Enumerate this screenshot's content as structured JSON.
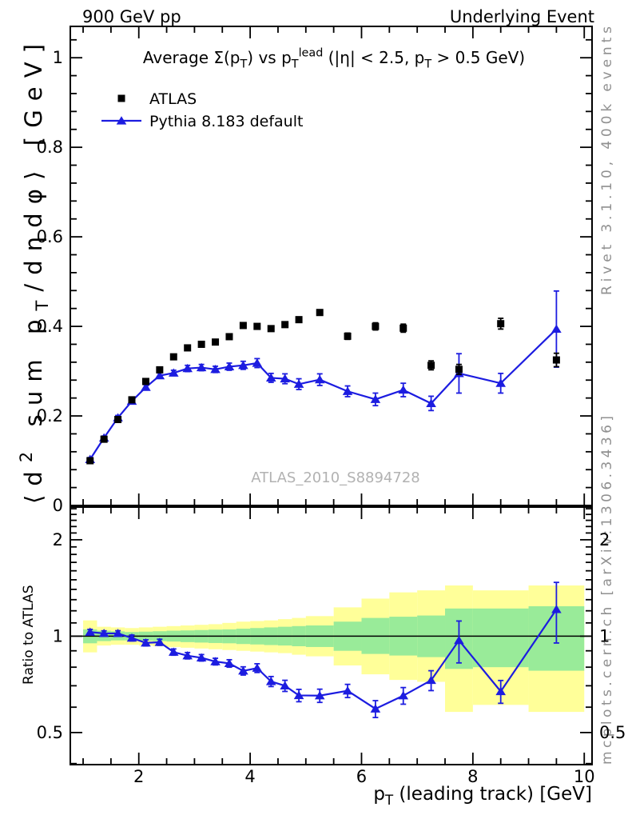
{
  "header": {
    "left": "900 GeV pp",
    "right": "Underlying Event"
  },
  "side_notes": {
    "top_right": "Rivet 3.1.10,  400k events",
    "bottom_right": "mcplots.cern.ch [arXiv:1306.3436]"
  },
  "watermark": {
    "text": "ATLAS_2010_S8894728"
  },
  "colors": {
    "mc_blue": "#1c1ce0",
    "data_black": "#000000",
    "band_yellow": "#ffff99",
    "band_green": "#99eb99",
    "note_gray": "#909090",
    "watermark_gray": "#b2b2b2"
  },
  "chart_data": [
    {
      "type": "scatter",
      "title": "Average Σ(p_{T}) vs p_{T}^{lead} (|η| < 2.5, p_{T} > 0.5 GeV)",
      "ylabel": "⟨d^{2} sum p_{T}/dηdφ⟩ [GeV]",
      "xlim": [
        0.77,
        10.14
      ],
      "ylim": [
        0,
        1.07
      ],
      "yticks": {
        "major_step": 0.2,
        "minor_step": 0.04,
        "labels": [
          "0",
          "0.2",
          "0.4",
          "0.6",
          "0.8",
          "1"
        ],
        "label_values": [
          0,
          0.2,
          0.4,
          0.6,
          0.8,
          1
        ]
      },
      "x": [
        1.125,
        1.375,
        1.625,
        1.875,
        2.125,
        2.375,
        2.625,
        2.875,
        3.125,
        3.375,
        3.625,
        3.875,
        4.125,
        4.375,
        4.625,
        4.875,
        5.25,
        5.75,
        6.25,
        6.75,
        7.25,
        7.75,
        8.5,
        9.5
      ],
      "series": [
        {
          "name": "ATLAS",
          "marker": "square",
          "color": "#000000",
          "line": false,
          "values": [
            0.1,
            0.148,
            0.192,
            0.236,
            0.277,
            0.303,
            0.332,
            0.352,
            0.36,
            0.365,
            0.377,
            0.402,
            0.4,
            0.395,
            0.404,
            0.415,
            0.431,
            0.378,
            0.4,
            0.396,
            0.313,
            0.304,
            0.406,
            0.325
          ],
          "errors": [
            0.003,
            0.003,
            0.003,
            0.003,
            0.004,
            0.004,
            0.004,
            0.004,
            0.004,
            0.005,
            0.005,
            0.005,
            0.005,
            0.005,
            0.006,
            0.006,
            0.006,
            0.007,
            0.008,
            0.009,
            0.01,
            0.011,
            0.012,
            0.015
          ]
        },
        {
          "name": "Pythia 8.183 default",
          "marker": "triangle",
          "color": "#1c1ce0",
          "line": true,
          "values": [
            0.103,
            0.151,
            0.196,
            0.233,
            0.264,
            0.29,
            0.296,
            0.306,
            0.308,
            0.304,
            0.31,
            0.313,
            0.318,
            0.285,
            0.283,
            0.271,
            0.281,
            0.255,
            0.237,
            0.258,
            0.228,
            0.295,
            0.273,
            0.394
          ],
          "errors": [
            0.004,
            0.004,
            0.005,
            0.005,
            0.006,
            0.006,
            0.006,
            0.007,
            0.007,
            0.007,
            0.008,
            0.009,
            0.01,
            0.01,
            0.011,
            0.012,
            0.013,
            0.012,
            0.014,
            0.015,
            0.016,
            0.044,
            0.022,
            0.085
          ]
        }
      ],
      "legend_position": "top-left"
    },
    {
      "type": "ratio",
      "ylabel": "Ratio to ATLAS",
      "xlabel": "p_{T} (leading track) [GeV]",
      "yscale": "log",
      "ylim": [
        0.397,
        2.53
      ],
      "yticks": {
        "major": [
          0.5,
          1,
          2
        ],
        "labels": [
          "0.5",
          "1",
          "2"
        ],
        "minor": [
          0.4,
          0.6,
          0.7,
          0.8,
          0.9,
          1.1,
          1.2,
          1.3,
          1.4,
          1.5,
          1.6,
          1.7,
          1.8,
          1.9,
          2.1,
          2.2,
          2.3,
          2.4,
          2.5
        ]
      },
      "xticks": {
        "major": [
          2,
          4,
          6,
          8,
          10
        ],
        "labels": [
          "2",
          "4",
          "6",
          "8",
          "10"
        ],
        "minor_step": 0.5
      },
      "reference_line": 1,
      "x": [
        1.125,
        1.375,
        1.625,
        1.875,
        2.125,
        2.375,
        2.625,
        2.875,
        3.125,
        3.375,
        3.625,
        3.875,
        4.125,
        4.375,
        4.625,
        4.875,
        5.25,
        5.75,
        6.25,
        6.75,
        7.25,
        7.75,
        8.5,
        9.5
      ],
      "ratio": [
        1.03,
        1.02,
        1.02,
        0.987,
        0.953,
        0.957,
        0.892,
        0.869,
        0.856,
        0.833,
        0.822,
        0.779,
        0.795,
        0.722,
        0.7,
        0.653,
        0.652,
        0.675,
        0.593,
        0.652,
        0.728,
        0.97,
        0.672,
        1.212
      ],
      "ratio_err": [
        0.02,
        0.019,
        0.02,
        0.021,
        0.021,
        0.021,
        0.02,
        0.02,
        0.02,
        0.02,
        0.022,
        0.023,
        0.025,
        0.026,
        0.028,
        0.029,
        0.031,
        0.032,
        0.036,
        0.039,
        0.052,
        0.145,
        0.055,
        0.26
      ],
      "band_edges": [
        1.0,
        1.25,
        1.5,
        1.75,
        2.0,
        2.25,
        2.5,
        2.75,
        3.0,
        3.25,
        3.5,
        3.75,
        4.0,
        4.25,
        4.5,
        4.75,
        5.0,
        5.5,
        6.0,
        6.5,
        7.0,
        7.5,
        8.0,
        9.0,
        10.0
      ],
      "band_yellow_lo": [
        0.89,
        0.935,
        0.94,
        0.94,
        0.935,
        0.93,
        0.925,
        0.92,
        0.915,
        0.91,
        0.905,
        0.9,
        0.895,
        0.89,
        0.885,
        0.875,
        0.865,
        0.81,
        0.76,
        0.73,
        0.72,
        0.58,
        0.61,
        0.58
      ],
      "band_yellow_hi": [
        1.12,
        1.07,
        1.065,
        1.06,
        1.065,
        1.07,
        1.075,
        1.08,
        1.085,
        1.09,
        1.1,
        1.11,
        1.115,
        1.12,
        1.13,
        1.14,
        1.155,
        1.23,
        1.31,
        1.37,
        1.39,
        1.44,
        1.39,
        1.44
      ],
      "band_green_lo": [
        0.95,
        0.965,
        0.97,
        0.97,
        0.968,
        0.965,
        0.962,
        0.958,
        0.955,
        0.952,
        0.95,
        0.945,
        0.942,
        0.938,
        0.935,
        0.93,
        0.925,
        0.9,
        0.88,
        0.87,
        0.86,
        0.79,
        0.8,
        0.78
      ],
      "band_green_hi": [
        1.05,
        1.04,
        1.035,
        1.03,
        1.033,
        1.036,
        1.04,
        1.042,
        1.045,
        1.048,
        1.05,
        1.055,
        1.06,
        1.065,
        1.07,
        1.075,
        1.08,
        1.11,
        1.14,
        1.15,
        1.16,
        1.22,
        1.22,
        1.24
      ]
    }
  ]
}
